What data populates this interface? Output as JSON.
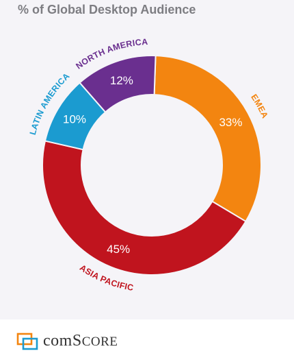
{
  "chart_data": {
    "type": "pie",
    "title": "% of Global Desktop Audience",
    "donut": true,
    "segments": [
      {
        "name": "EMEA",
        "value": 33,
        "label": "33%",
        "color": "#f38510"
      },
      {
        "name": "ASIA PACIFIC",
        "value": 45,
        "label": "45%",
        "color": "#c0141e"
      },
      {
        "name": "LATIN AMERICA",
        "value": 10,
        "label": "10%",
        "color": "#1b9bd0"
      },
      {
        "name": "NORTH AMERICA",
        "value": 12,
        "label": "12%",
        "color": "#6a2f8f"
      }
    ]
  },
  "footer": {
    "logo_prefix": "com",
    "logo_mid": "S",
    "logo_suffix": "CORE",
    "logo_icon": "comscore-logo-icon"
  }
}
